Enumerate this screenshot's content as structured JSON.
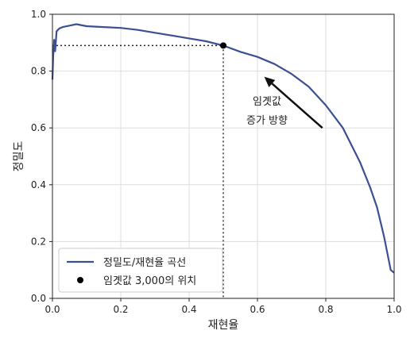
{
  "chart_data": {
    "type": "line",
    "xlabel": "재현율",
    "ylabel": "정밀도",
    "xlim": [
      0.0,
      1.0
    ],
    "ylim": [
      0.0,
      1.0
    ],
    "grid": true,
    "x_ticks": [
      "0.0",
      "0.2",
      "0.4",
      "0.6",
      "0.8",
      "1.0"
    ],
    "y_ticks": [
      "0.0",
      "0.2",
      "0.4",
      "0.6",
      "0.8",
      "1.0"
    ],
    "series": [
      {
        "name": "정밀도/재현율 곡선",
        "color": "#3b4f93",
        "x": [
          0.0,
          0.002,
          0.005,
          0.008,
          0.012,
          0.02,
          0.03,
          0.05,
          0.07,
          0.1,
          0.15,
          0.2,
          0.25,
          0.3,
          0.35,
          0.4,
          0.45,
          0.5,
          0.55,
          0.6,
          0.65,
          0.7,
          0.75,
          0.8,
          0.85,
          0.9,
          0.93,
          0.95,
          0.97,
          0.98,
          0.99,
          1.0
        ],
        "y": [
          0.77,
          0.85,
          0.91,
          0.87,
          0.94,
          0.95,
          0.955,
          0.96,
          0.965,
          0.958,
          0.955,
          0.952,
          0.945,
          0.935,
          0.925,
          0.915,
          0.905,
          0.89,
          0.868,
          0.85,
          0.825,
          0.79,
          0.745,
          0.68,
          0.6,
          0.48,
          0.39,
          0.32,
          0.22,
          0.16,
          0.1,
          0.09
        ]
      }
    ],
    "threshold_point": {
      "name": "임곗값 3,000의 위치",
      "x": 0.5,
      "y": 0.89,
      "color": "#000000"
    },
    "legend": {
      "position": "lower-left"
    },
    "annotation": {
      "lines": [
        "임곗값",
        "증가 방향"
      ],
      "arrow_from": [
        0.79,
        0.6
      ],
      "arrow_to": [
        0.62,
        0.78
      ]
    }
  }
}
